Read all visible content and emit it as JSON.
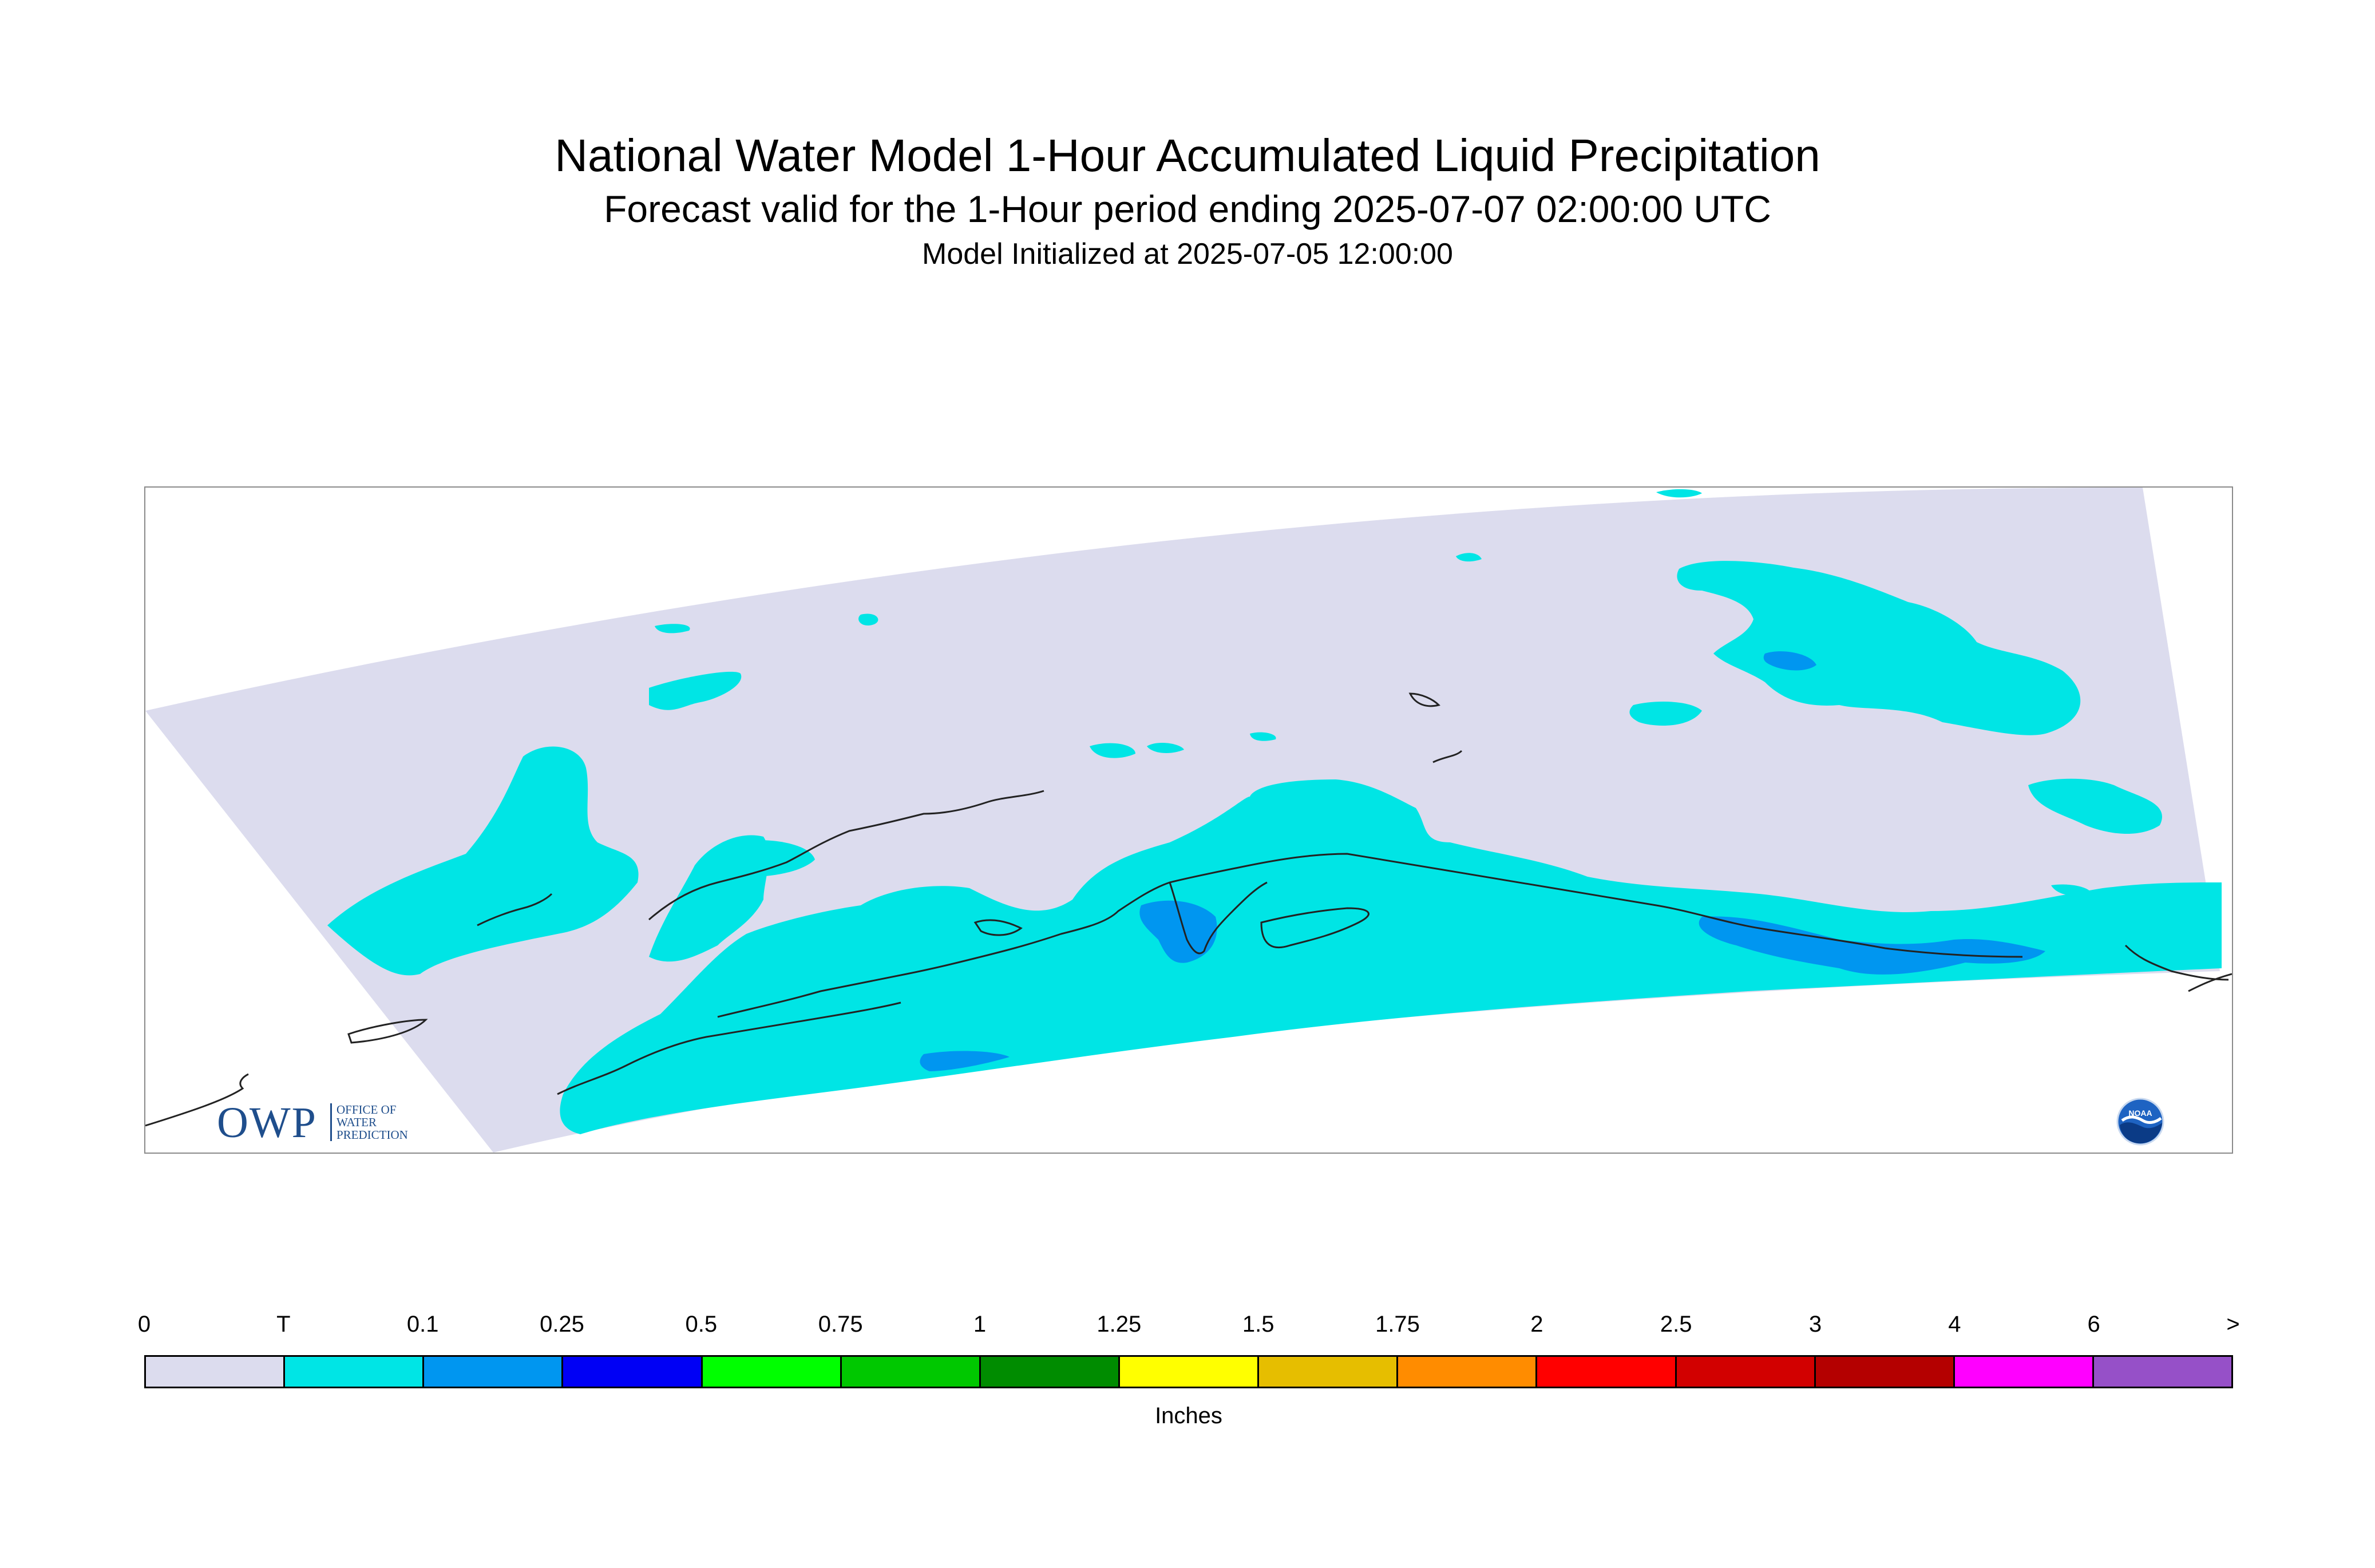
{
  "title": "National Water Model 1-Hour Accumulated Liquid Precipitation",
  "subtitle": "Forecast valid for the 1-Hour period ending 2025-07-07 02:00:00 UTC",
  "init_line": "Model Initialized at 2025-07-05 12:00:00",
  "map": {
    "domain_fill_color": "#dcdcee",
    "trace_color": "#00e5e5",
    "light_blue_color": "#0096f0",
    "coastline_color": "#222222"
  },
  "logos": {
    "owp": {
      "letters": "OWP",
      "line1": "OFFICE OF",
      "line2": "WATER",
      "line3": "PREDICTION"
    },
    "noaa": {
      "text": "NOAA"
    }
  },
  "legend": {
    "tick_labels": [
      "0",
      "T",
      "0.1",
      "0.25",
      "0.5",
      "0.75",
      "1",
      "1.25",
      "1.5",
      "1.75",
      "2",
      "2.5",
      "3",
      "4",
      "6",
      ">"
    ],
    "colors": [
      "#dcdcee",
      "#00e5e5",
      "#0096f0",
      "#0000f5",
      "#00ff00",
      "#00c800",
      "#008c00",
      "#ffff00",
      "#e6be00",
      "#ff8c00",
      "#ff0000",
      "#d20000",
      "#b40000",
      "#ff00ff",
      "#9650c8"
    ],
    "unit": "Inches"
  }
}
